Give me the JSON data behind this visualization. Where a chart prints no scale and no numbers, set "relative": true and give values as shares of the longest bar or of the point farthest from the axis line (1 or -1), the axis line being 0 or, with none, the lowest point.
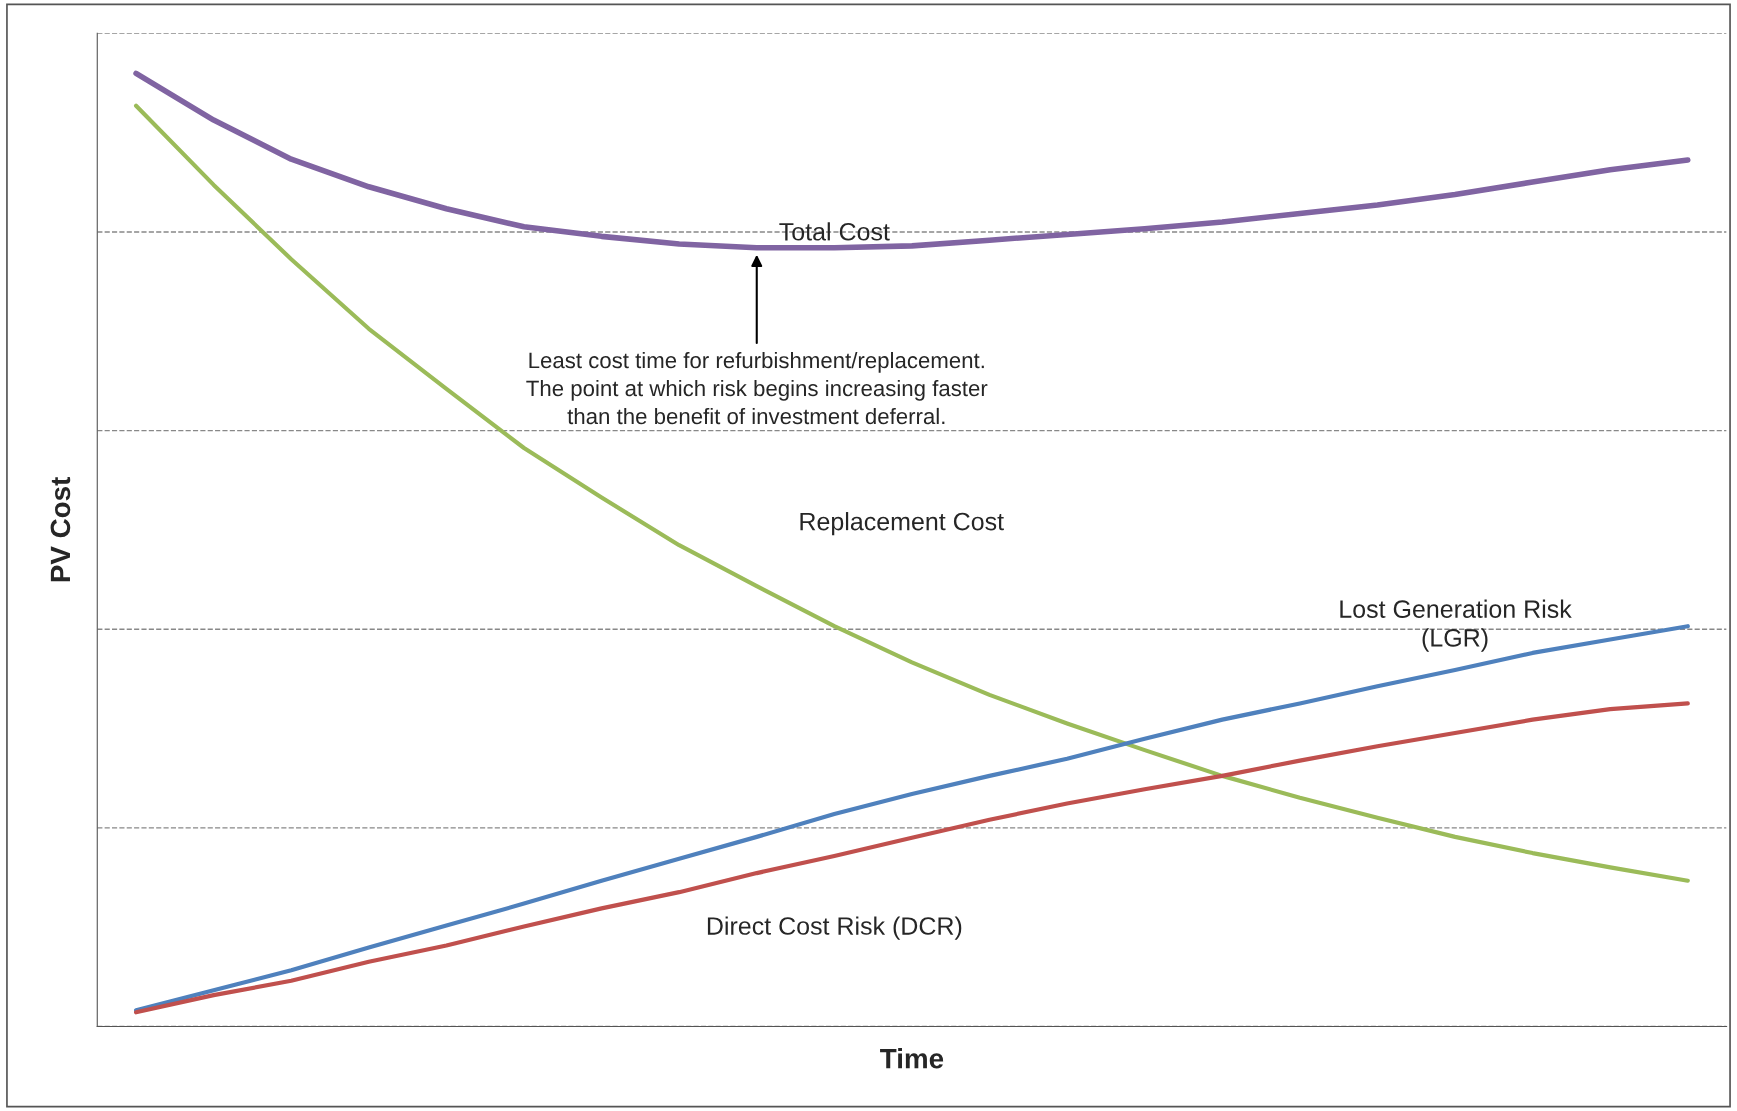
{
  "chart_data": {
    "type": "line",
    "relative": true,
    "xlabel": "Time",
    "ylabel": "PV Cost",
    "grid": "y",
    "legend": false,
    "marker": "none",
    "line_style": "solid",
    "categories": [
      null,
      null,
      null,
      null,
      null,
      null,
      null,
      null,
      null,
      null,
      null,
      null,
      null,
      null,
      null,
      null,
      null,
      null,
      null,
      null,
      null
    ],
    "series": [
      {
        "name": "Total Cost",
        "color": "#8064a2",
        "values": [
          1.0,
          0.951,
          0.91,
          0.881,
          0.858,
          0.839,
          0.829,
          0.821,
          0.817,
          0.817,
          0.819,
          0.825,
          0.831,
          0.837,
          0.844,
          0.853,
          0.862,
          0.873,
          0.886,
          0.899,
          0.909
        ]
      },
      {
        "name": "Replacement Cost",
        "color": "#9bbb59",
        "values": [
          0.966,
          0.883,
          0.805,
          0.732,
          0.669,
          0.607,
          0.555,
          0.505,
          0.462,
          0.42,
          0.382,
          0.348,
          0.318,
          0.29,
          0.263,
          0.24,
          0.219,
          0.199,
          0.182,
          0.167,
          0.153
        ]
      },
      {
        "name": "Lost Generation Risk\n(LGR)",
        "color": "#4f81bd",
        "values": [
          0.017,
          0.038,
          0.059,
          0.083,
          0.106,
          0.129,
          0.153,
          0.176,
          0.199,
          0.223,
          0.244,
          0.263,
          0.281,
          0.302,
          0.322,
          0.339,
          0.357,
          0.374,
          0.392,
          0.406,
          0.42
        ]
      },
      {
        "name": "Direct Cost Risk (DCR)",
        "color": "#c0504d",
        "values": [
          0.015,
          0.033,
          0.048,
          0.068,
          0.085,
          0.105,
          0.124,
          0.141,
          0.161,
          0.179,
          0.198,
          0.217,
          0.234,
          0.249,
          0.263,
          0.279,
          0.294,
          0.308,
          0.322,
          0.333,
          0.339
        ]
      }
    ],
    "annotations": [
      "Least cost time for refurbishment/replacement.\nThe point at which risk begins increasing faster\nthan the benefit of investment deferral."
    ]
  }
}
